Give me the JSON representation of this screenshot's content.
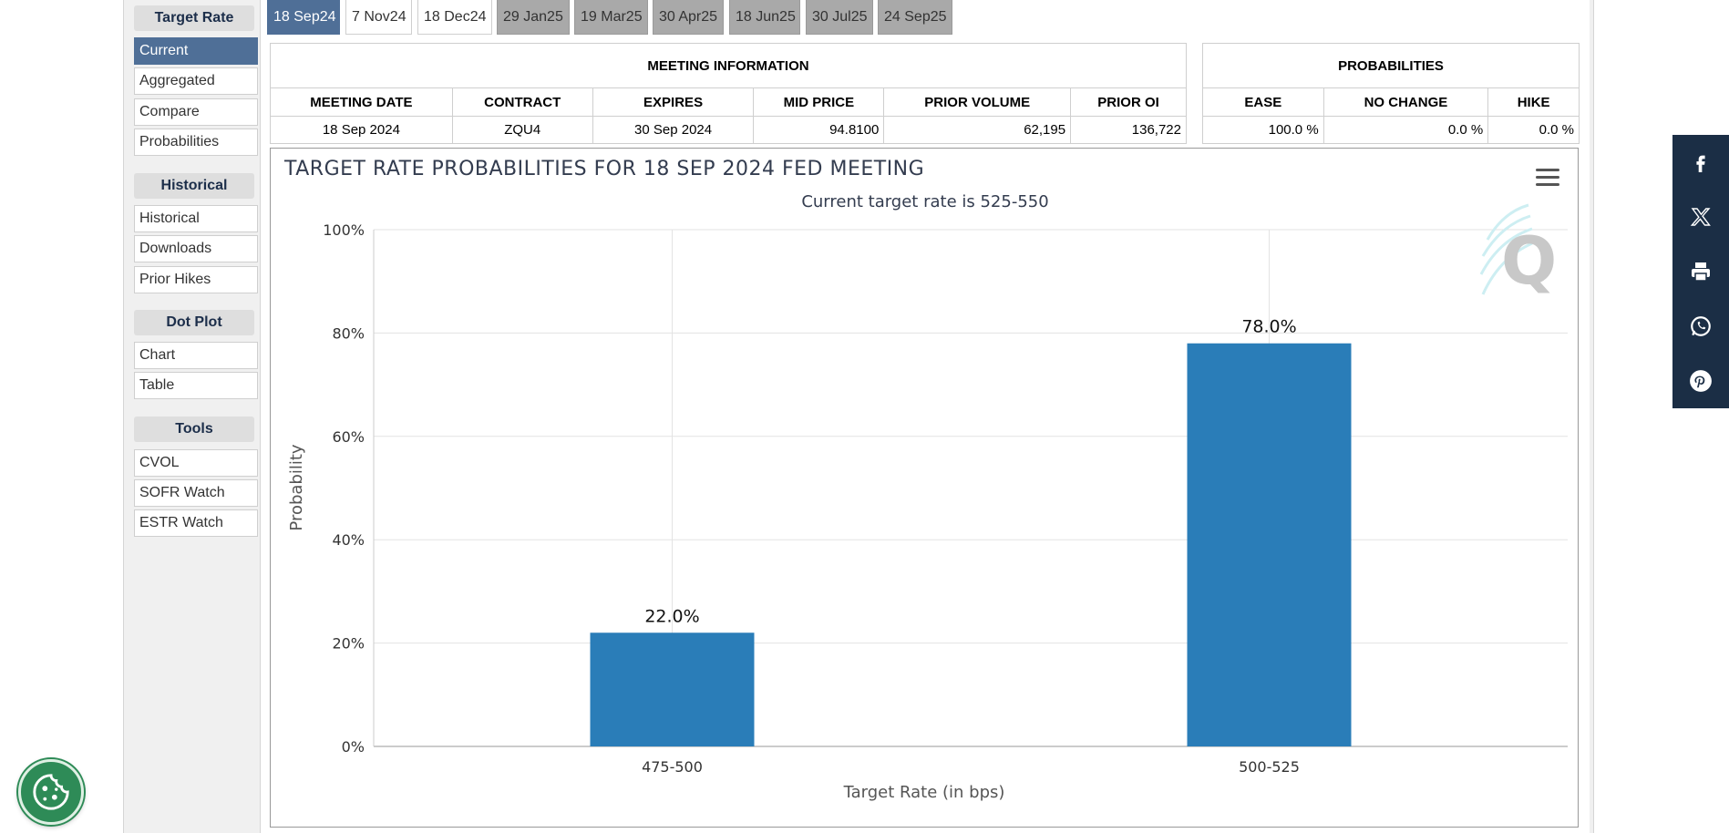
{
  "sidebar": {
    "sections": [
      {
        "heading": "Target Rate",
        "items": [
          "Current",
          "Aggregated",
          "Compare",
          "Probabilities"
        ]
      },
      {
        "heading": "Historical",
        "items": [
          "Historical",
          "Downloads",
          "Prior Hikes"
        ]
      },
      {
        "heading": "Dot Plot",
        "items": [
          "Chart",
          "Table"
        ]
      },
      {
        "heading": "Tools",
        "items": [
          "CVOL",
          "SOFR Watch",
          "ESTR Watch"
        ]
      }
    ],
    "active_item": "Current"
  },
  "tabs": [
    "18 Sep24",
    "7 Nov24",
    "18 Dec24",
    "29 Jan25",
    "19 Mar25",
    "30 Apr25",
    "18 Jun25",
    "30 Jul25",
    "24 Sep25"
  ],
  "active_tab": "18 Sep24",
  "meeting_info": {
    "title": "MEETING INFORMATION",
    "headers": [
      "MEETING DATE",
      "CONTRACT",
      "EXPIRES",
      "MID PRICE",
      "PRIOR VOLUME",
      "PRIOR OI"
    ],
    "values": [
      "18 Sep 2024",
      "ZQU4",
      "30 Sep 2024",
      "94.8100",
      "62,195",
      "136,722"
    ]
  },
  "probabilities": {
    "title": "PROBABILITIES",
    "headers": [
      "EASE",
      "NO CHANGE",
      "HIKE"
    ],
    "values": [
      "100.0 %",
      "0.0 %",
      "0.0 %"
    ]
  },
  "chart_data": {
    "type": "bar",
    "title": "TARGET RATE PROBABILITIES FOR 18 SEP 2024 FED MEETING",
    "subtitle": "Current target rate is 525-550",
    "xlabel": "Target Rate (in bps)",
    "ylabel": "Probability",
    "categories": [
      "475-500",
      "500-525"
    ],
    "values": [
      22.0,
      78.0
    ],
    "data_labels": [
      "22.0%",
      "78.0%"
    ],
    "ylim": [
      0,
      100
    ],
    "yticks": [
      "0%",
      "20%",
      "40%",
      "60%",
      "80%",
      "100%"
    ],
    "grid": true,
    "bar_color": "#2a7db8",
    "watermark": "Q"
  },
  "social": [
    "facebook-icon",
    "x-icon",
    "print-icon",
    "whatsapp-icon",
    "pinterest-icon"
  ]
}
